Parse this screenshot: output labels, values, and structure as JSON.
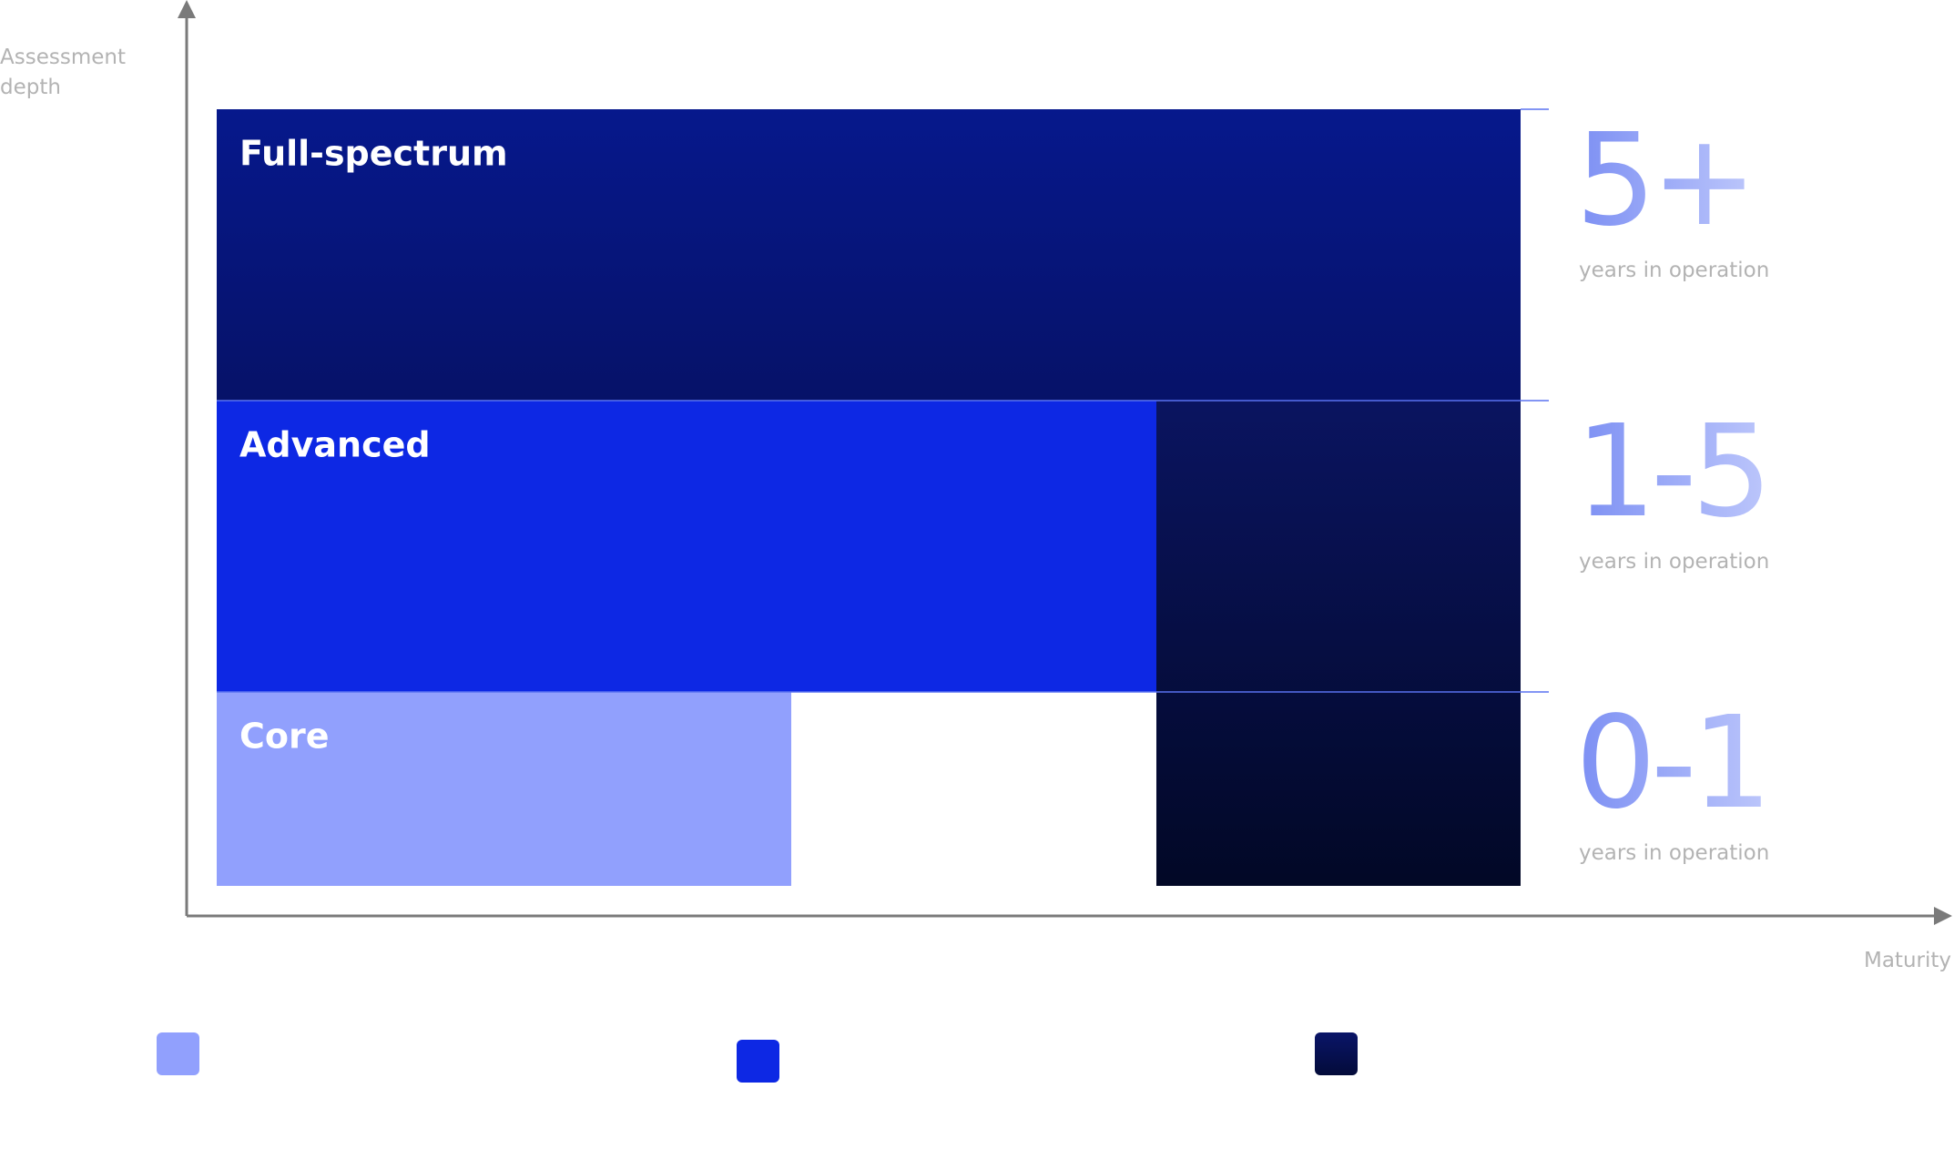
{
  "axes": {
    "y_label": "Assessment depth",
    "x_label": "Maturity"
  },
  "tiers": [
    {
      "label": "Full-spectrum",
      "years": "5+",
      "caption": "years in operation"
    },
    {
      "label": "Advanced",
      "years": "1-5",
      "caption": "years in operation"
    },
    {
      "label": "Core",
      "years": "0-1",
      "caption": "years in operation"
    }
  ]
}
